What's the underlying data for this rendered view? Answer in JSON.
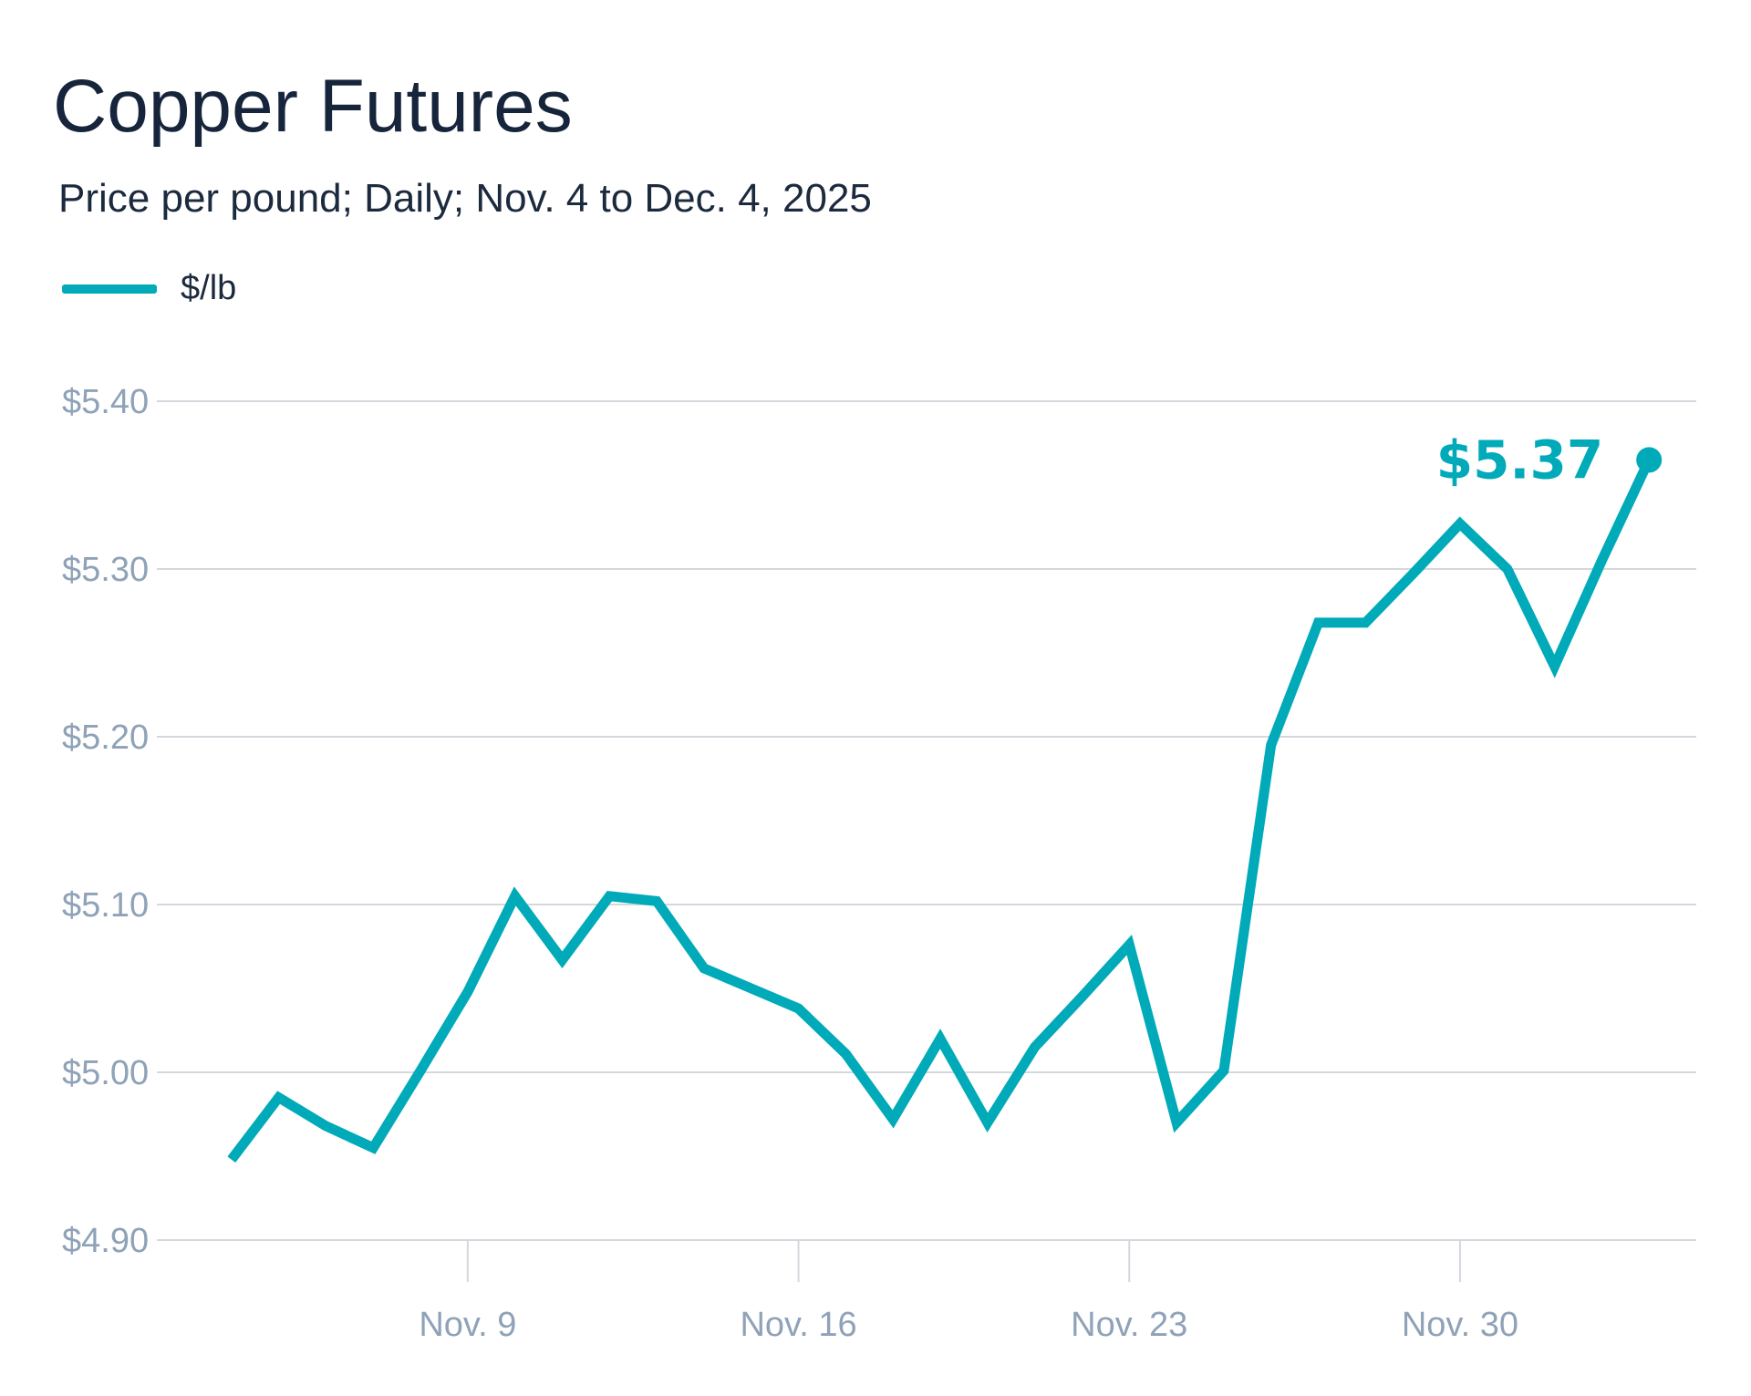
{
  "title": "Copper Futures",
  "subtitle": "Price per pound; Daily; Nov. 4 to Dec. 4, 2025",
  "legend": {
    "label": "$/lb"
  },
  "colors": {
    "line": "#00aab9",
    "grid": "#d4d8de",
    "tick_text": "#8fa2b8",
    "title": "#16253b"
  },
  "chart_data": {
    "type": "line",
    "title": "Copper Futures",
    "subtitle": "Price per pound; Daily; Nov. 4 to Dec. 4, 2025",
    "series": [
      {
        "name": "$/lb",
        "points": [
          {
            "x": "2025-11-04",
            "y": 4.948
          },
          {
            "x": "2025-11-05",
            "y": 4.985
          },
          {
            "x": "2025-11-06",
            "y": 4.968
          },
          {
            "x": "2025-11-07",
            "y": 4.955
          },
          {
            "x": "2025-11-08",
            "y": 5.001
          },
          {
            "x": "2025-11-09",
            "y": 5.048
          },
          {
            "x": "2025-11-10",
            "y": 5.105
          },
          {
            "x": "2025-11-11",
            "y": 5.067
          },
          {
            "x": "2025-11-12",
            "y": 5.105
          },
          {
            "x": "2025-11-13",
            "y": 5.102
          },
          {
            "x": "2025-11-14",
            "y": 5.062
          },
          {
            "x": "2025-11-15",
            "y": 5.05
          },
          {
            "x": "2025-11-16",
            "y": 5.038
          },
          {
            "x": "2025-11-17",
            "y": 5.011
          },
          {
            "x": "2025-11-18",
            "y": 4.972
          },
          {
            "x": "2025-11-19",
            "y": 5.02
          },
          {
            "x": "2025-11-20",
            "y": 4.97
          },
          {
            "x": "2025-11-21",
            "y": 5.015
          },
          {
            "x": "2025-11-22",
            "y": 5.045
          },
          {
            "x": "2025-11-23",
            "y": 5.076
          },
          {
            "x": "2025-11-24",
            "y": 4.97
          },
          {
            "x": "2025-11-25",
            "y": 5.001
          },
          {
            "x": "2025-11-26",
            "y": 5.195
          },
          {
            "x": "2025-11-27",
            "y": 5.268
          },
          {
            "x": "2025-11-28",
            "y": 5.268
          },
          {
            "x": "2025-11-29",
            "y": 5.297
          },
          {
            "x": "2025-11-30",
            "y": 5.327
          },
          {
            "x": "2025-12-01",
            "y": 5.3
          },
          {
            "x": "2025-12-02",
            "y": 5.242
          },
          {
            "x": "2025-12-03",
            "y": 5.305
          },
          {
            "x": "2025-12-04",
            "y": 5.365
          }
        ]
      }
    ],
    "xlim": [
      "2025-11-03",
      "2025-12-05"
    ],
    "ylim": [
      4.9,
      5.4
    ],
    "y_ticks": [
      {
        "value": 4.9,
        "label": "$4.90"
      },
      {
        "value": 5.0,
        "label": "$5.00"
      },
      {
        "value": 5.1,
        "label": "$5.10"
      },
      {
        "value": 5.2,
        "label": "$5.20"
      },
      {
        "value": 5.3,
        "label": "$5.30"
      },
      {
        "value": 5.4,
        "label": "$5.40"
      }
    ],
    "x_ticks": [
      {
        "value": "2025-11-09",
        "label": "Nov. 9"
      },
      {
        "value": "2025-11-16",
        "label": "Nov. 16"
      },
      {
        "value": "2025-11-23",
        "label": "Nov. 23"
      },
      {
        "value": "2025-11-30",
        "label": "Nov. 30"
      }
    ],
    "grid": true,
    "legend_position": "top-left",
    "end_label": "$5.37"
  }
}
